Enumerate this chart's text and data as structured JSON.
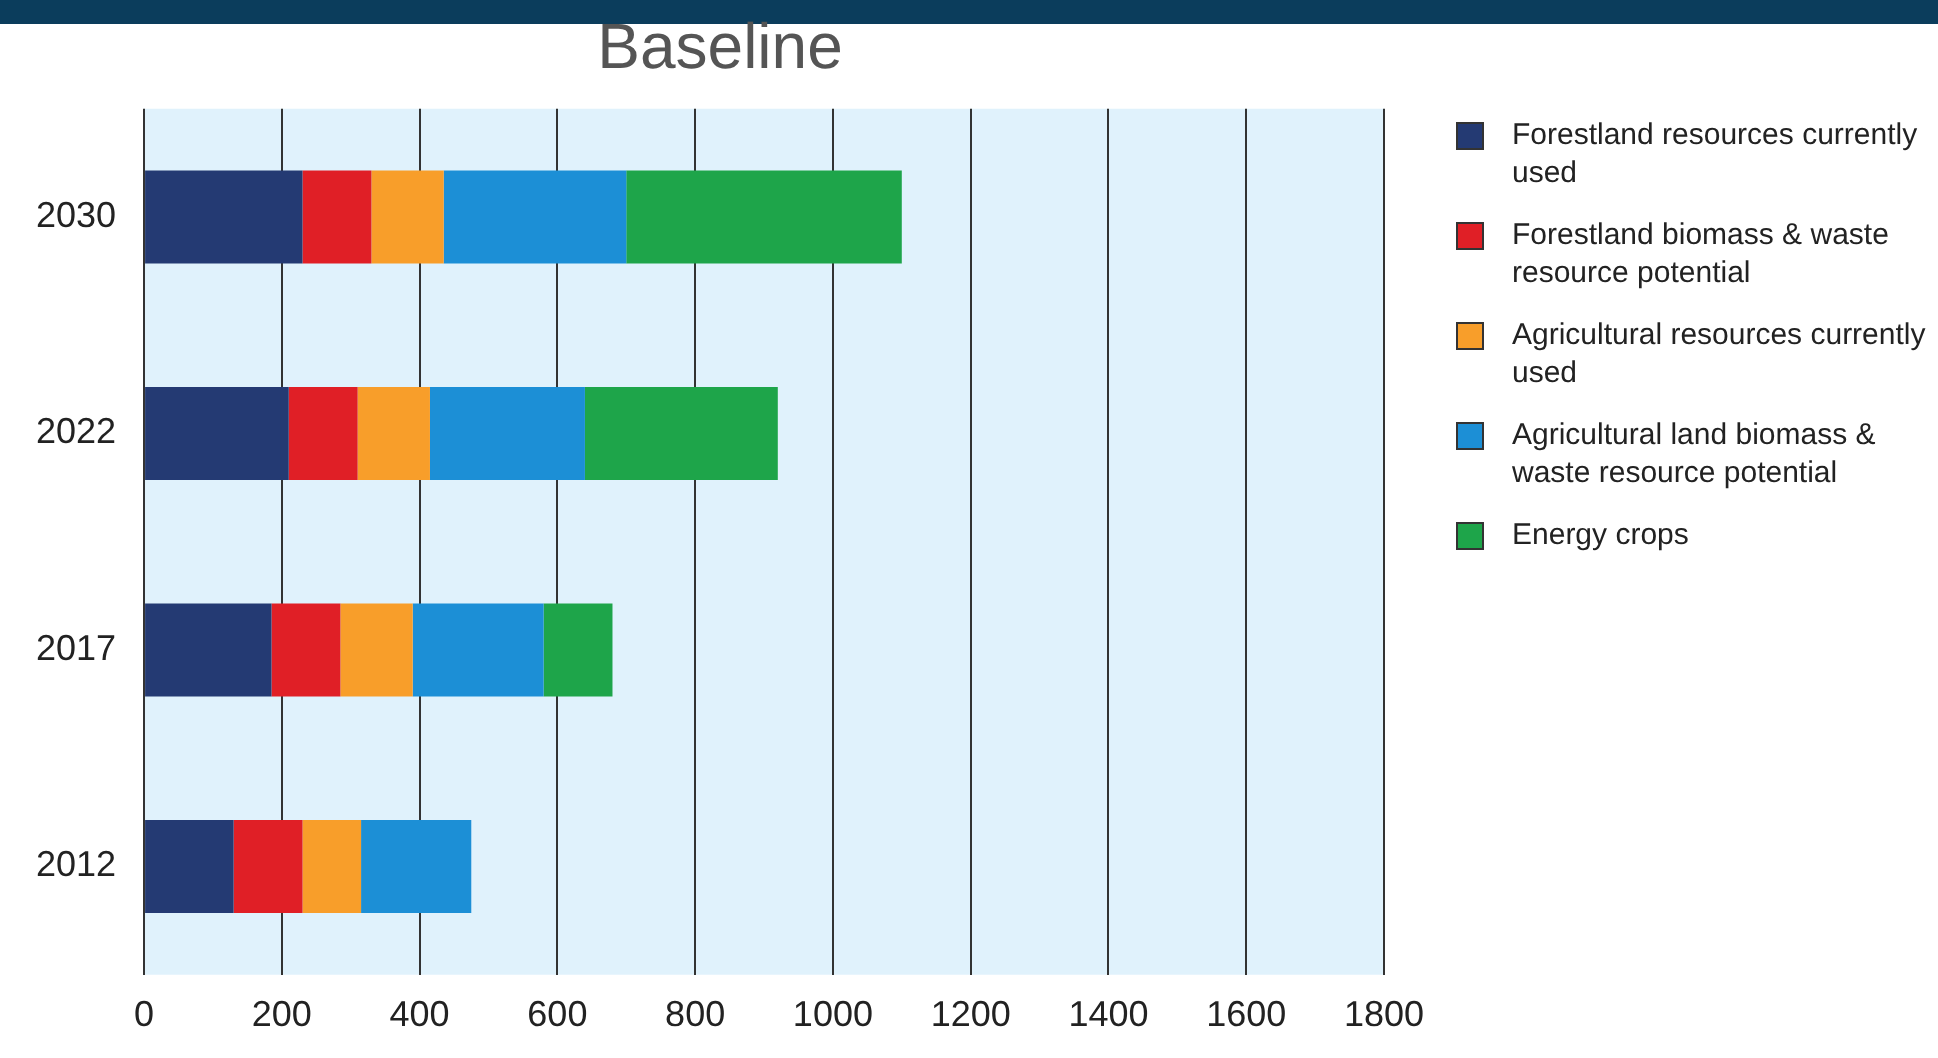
{
  "chart_data": {
    "type": "bar",
    "title": "Baseline",
    "orientation": "horizontal",
    "stacked": true,
    "categories": [
      "2030",
      "2022",
      "2017",
      "2012"
    ],
    "series": [
      {
        "name": "Forestland resources currently used",
        "color": "#243a73",
        "values": [
          230,
          210,
          185,
          130
        ]
      },
      {
        "name": "Forestland biomass & waste resource potential",
        "color": "#e01f26",
        "values": [
          100,
          100,
          100,
          100
        ]
      },
      {
        "name": "Agricultural resources currently used",
        "color": "#f89e2a",
        "values": [
          105,
          105,
          105,
          85
        ]
      },
      {
        "name": "Agricultural land biomass & waste resource potential",
        "color": "#1c8fd6",
        "values": [
          265,
          225,
          190,
          160
        ]
      },
      {
        "name": "Energy crops",
        "color": "#1ea54a",
        "values": [
          400,
          280,
          100,
          null
        ]
      }
    ],
    "xlim": [
      0,
      1800
    ],
    "xticks": [
      0,
      200,
      400,
      600,
      800,
      1000,
      1200,
      1400,
      1600,
      1800
    ],
    "grid": "x",
    "legend": "right"
  }
}
